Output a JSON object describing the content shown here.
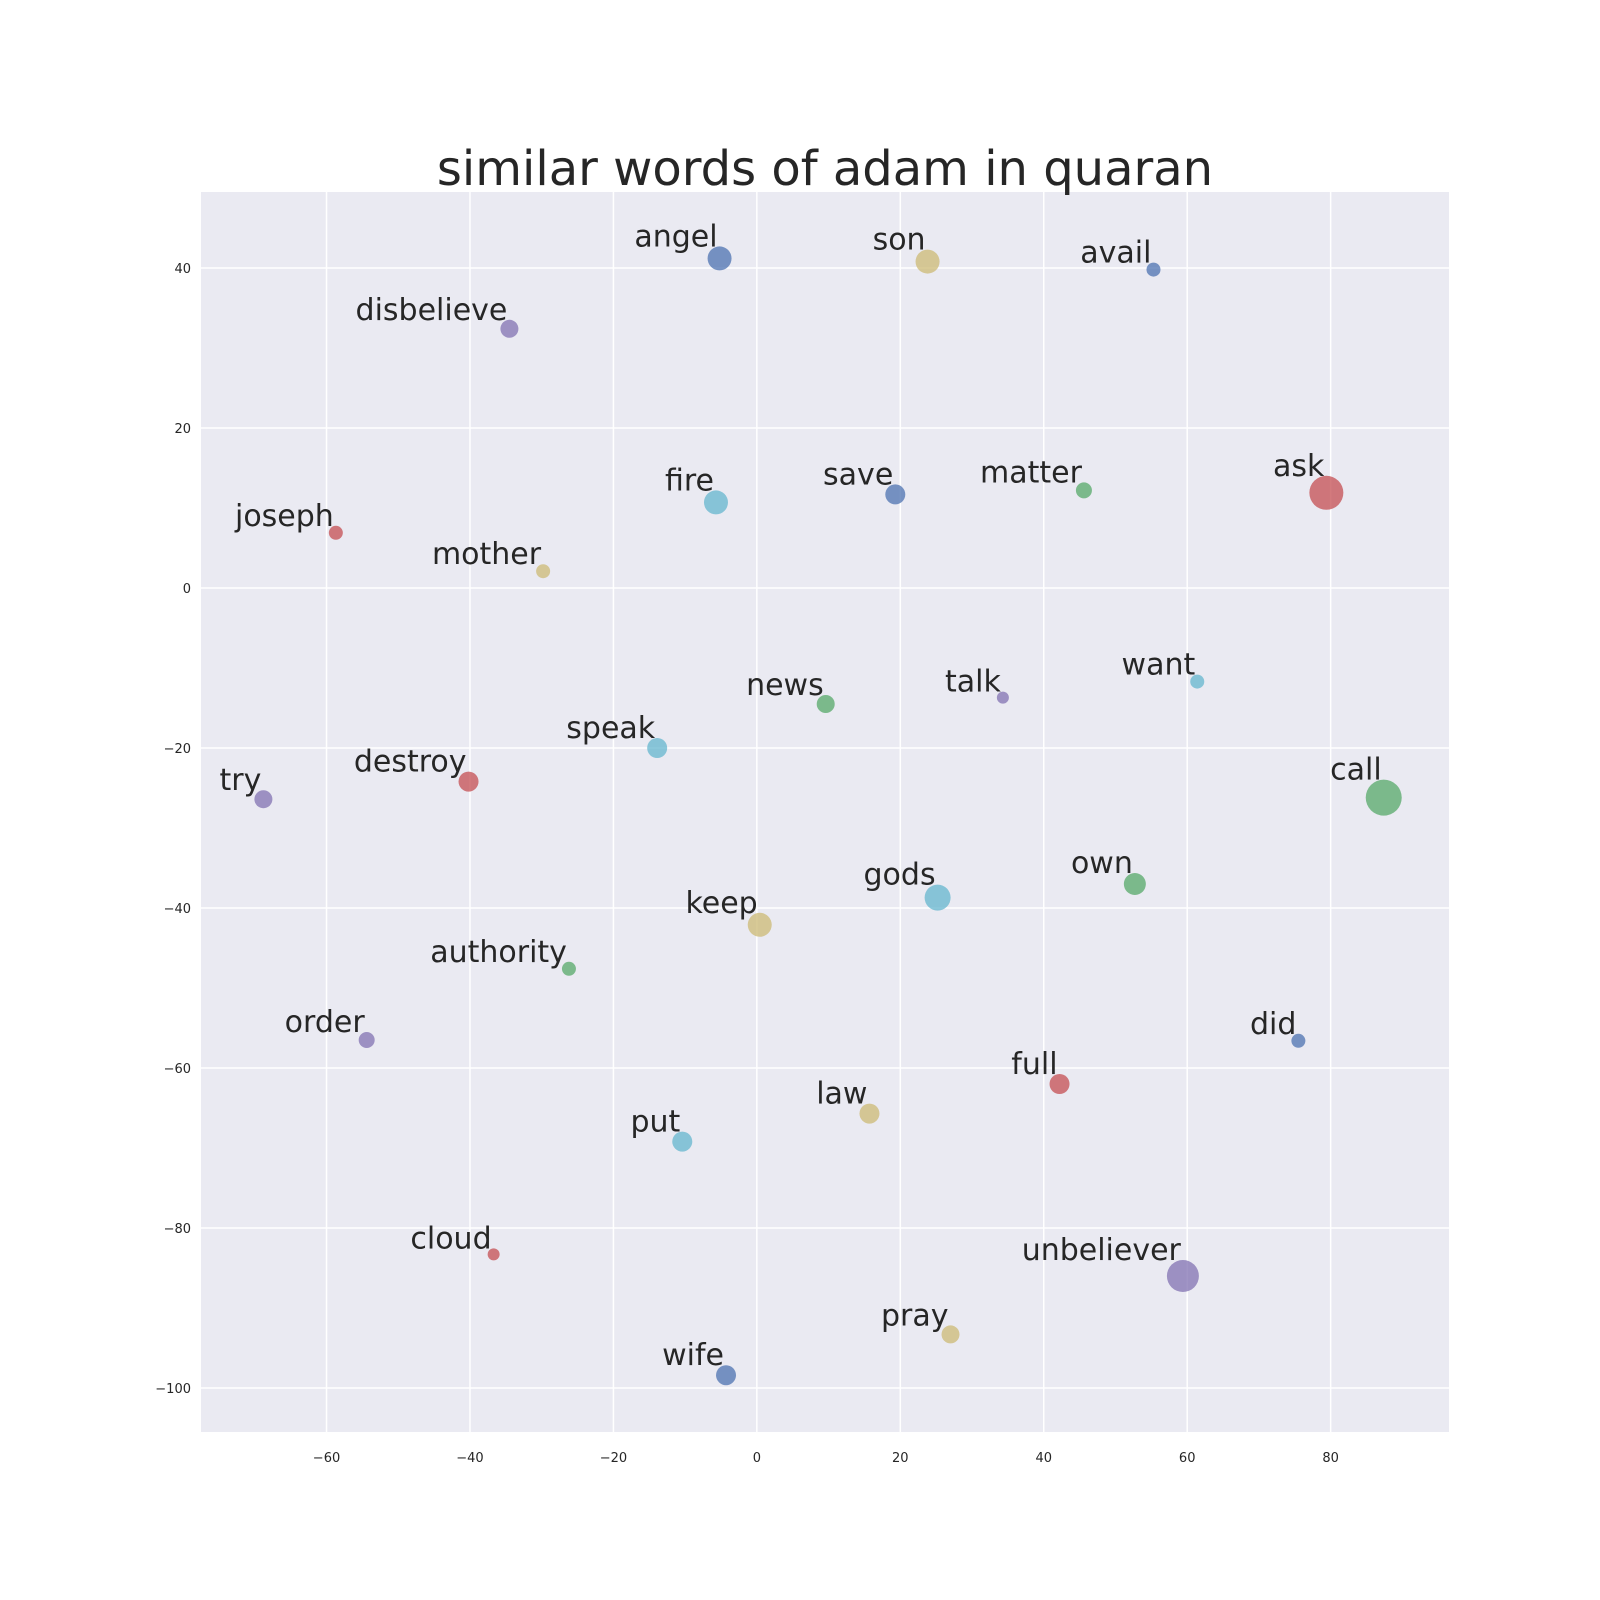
{
  "chart_data": {
    "type": "scatter",
    "title": "similar words of adam in quaran",
    "xlabel": "",
    "ylabel": "",
    "xlim": [
      -77.5,
      96.5
    ],
    "ylim": [
      -105.5,
      49.5
    ],
    "xticks": [
      -60,
      -40,
      -20,
      0,
      20,
      40,
      60,
      80
    ],
    "yticks": [
      40,
      20,
      0,
      -20,
      -40,
      -60,
      -80,
      -100
    ],
    "grid": true,
    "legend": "none",
    "background_color": "#eaeaf2",
    "grid_color": "#ffffff",
    "palette": {
      "blue": "#4c72b0",
      "green": "#55a868",
      "red": "#c44e52",
      "purple": "#8172b2",
      "yellow": "#ccb974",
      "cyan": "#64b5cd"
    },
    "points": [
      {
        "label": "angel",
        "x": -5.2,
        "y": 41.2,
        "size": 12,
        "color": "#4c72b0"
      },
      {
        "label": "son",
        "x": 23.8,
        "y": 40.8,
        "size": 12,
        "color": "#ccb974"
      },
      {
        "label": "avail",
        "x": 55.3,
        "y": 39.8,
        "size": 7,
        "color": "#4c72b0"
      },
      {
        "label": "disbelieve",
        "x": -34.5,
        "y": 32.4,
        "size": 9,
        "color": "#8172b2"
      },
      {
        "label": "fire",
        "x": -5.7,
        "y": 10.7,
        "size": 12,
        "color": "#64b5cd"
      },
      {
        "label": "save",
        "x": 19.3,
        "y": 11.7,
        "size": 10,
        "color": "#4c72b0"
      },
      {
        "label": "matter",
        "x": 45.6,
        "y": 12.2,
        "size": 8,
        "color": "#55a868"
      },
      {
        "label": "ask",
        "x": 79.4,
        "y": 11.9,
        "size": 17,
        "color": "#c44e52"
      },
      {
        "label": "joseph",
        "x": -58.7,
        "y": 6.9,
        "size": 7,
        "color": "#c44e52"
      },
      {
        "label": "mother",
        "x": -29.8,
        "y": 2.1,
        "size": 7,
        "color": "#ccb974"
      },
      {
        "label": "news",
        "x": 9.6,
        "y": -14.5,
        "size": 9,
        "color": "#55a868"
      },
      {
        "label": "talk",
        "x": 34.3,
        "y": -13.7,
        "size": 6,
        "color": "#8172b2"
      },
      {
        "label": "want",
        "x": 61.4,
        "y": -11.7,
        "size": 7,
        "color": "#64b5cd"
      },
      {
        "label": "speak",
        "x": -13.9,
        "y": -20.0,
        "size": 10,
        "color": "#64b5cd"
      },
      {
        "label": "destroy",
        "x": -40.2,
        "y": -24.2,
        "size": 10,
        "color": "#c44e52"
      },
      {
        "label": "try",
        "x": -68.8,
        "y": -26.4,
        "size": 9,
        "color": "#8172b2"
      },
      {
        "label": "call",
        "x": 87.4,
        "y": -26.2,
        "size": 18,
        "color": "#55a868"
      },
      {
        "label": "gods",
        "x": 25.2,
        "y": -38.7,
        "size": 13,
        "color": "#64b5cd"
      },
      {
        "label": "own",
        "x": 52.7,
        "y": -37.0,
        "size": 11,
        "color": "#55a868"
      },
      {
        "label": "keep",
        "x": 0.4,
        "y": -42.1,
        "size": 12,
        "color": "#ccb974"
      },
      {
        "label": "authority",
        "x": -26.2,
        "y": -47.6,
        "size": 7,
        "color": "#55a868"
      },
      {
        "label": "order",
        "x": -54.4,
        "y": -56.5,
        "size": 8,
        "color": "#8172b2"
      },
      {
        "label": "did",
        "x": 75.5,
        "y": -56.6,
        "size": 7,
        "color": "#4c72b0"
      },
      {
        "label": "full",
        "x": 42.2,
        "y": -62.0,
        "size": 10,
        "color": "#c44e52"
      },
      {
        "label": "law",
        "x": 15.7,
        "y": -65.7,
        "size": 10,
        "color": "#ccb974"
      },
      {
        "label": "put",
        "x": -10.4,
        "y": -69.2,
        "size": 10,
        "color": "#64b5cd"
      },
      {
        "label": "cloud",
        "x": -36.7,
        "y": -83.3,
        "size": 6,
        "color": "#c44e52"
      },
      {
        "label": "unbeliever",
        "x": 59.4,
        "y": -86.0,
        "size": 16,
        "color": "#8172b2"
      },
      {
        "label": "pray",
        "x": 27.0,
        "y": -93.3,
        "size": 9,
        "color": "#ccb974"
      },
      {
        "label": "wife",
        "x": -4.3,
        "y": -98.4,
        "size": 10,
        "color": "#4c72b0"
      }
    ]
  }
}
